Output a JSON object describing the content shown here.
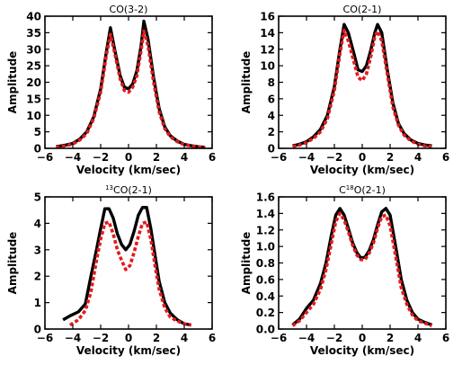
{
  "chart_data": [
    {
      "type": "line",
      "title": "CO(3-2)",
      "xlabel": "Velocity (km/sec)",
      "ylabel": "Amplitude",
      "xlim": [
        -6,
        6
      ],
      "ylim": [
        0,
        40
      ],
      "xticks": [
        "−6",
        "−4",
        "−2",
        "0",
        "2",
        "4",
        "6"
      ],
      "yticks": [
        "0",
        "5",
        "10",
        "15",
        "20",
        "25",
        "30",
        "35",
        "40"
      ],
      "series": [
        {
          "color": "#000000",
          "style": "solid",
          "x": [
            -5.2,
            -4.5,
            -4.0,
            -3.5,
            -3.0,
            -2.5,
            -2.0,
            -1.6,
            -1.3,
            -1.0,
            -0.6,
            -0.3,
            0.0,
            0.3,
            0.6,
            0.9,
            1.1,
            1.4,
            1.8,
            2.2,
            2.6,
            3.0,
            3.5,
            4.0,
            4.5,
            5.0,
            5.5
          ],
          "y": [
            0.5,
            1.0,
            1.5,
            2.8,
            5.0,
            9.5,
            18.0,
            29.0,
            36.5,
            30.0,
            22.0,
            18.5,
            18.0,
            19.5,
            23.5,
            31.0,
            38.5,
            33.0,
            21.5,
            12.0,
            6.5,
            3.8,
            2.2,
            1.2,
            0.8,
            0.5,
            0.3
          ]
        },
        {
          "color": "#e31a1c",
          "style": "dotted",
          "x": [
            -5.2,
            -4.5,
            -4.0,
            -3.5,
            -3.0,
            -2.5,
            -2.0,
            -1.6,
            -1.3,
            -1.0,
            -0.6,
            -0.3,
            0.0,
            0.3,
            0.6,
            0.9,
            1.1,
            1.4,
            1.8,
            2.2,
            2.6,
            3.0,
            3.5,
            4.0,
            4.5,
            5.0,
            5.5
          ],
          "y": [
            0.3,
            0.8,
            1.3,
            2.5,
            4.5,
            9.0,
            17.0,
            28.0,
            34.5,
            29.0,
            21.0,
            17.5,
            17.0,
            18.5,
            22.0,
            29.5,
            35.5,
            31.0,
            20.0,
            11.0,
            6.0,
            3.5,
            2.0,
            1.1,
            0.7,
            0.4,
            0.2
          ]
        }
      ]
    },
    {
      "type": "line",
      "title": "CO(2-1)",
      "xlabel": "Velocity (km/sec)",
      "ylabel": "Amplitude",
      "xlim": [
        -6,
        6
      ],
      "ylim": [
        0,
        16
      ],
      "xticks": [
        "−6",
        "−4",
        "−2",
        "0",
        "2",
        "4",
        "6"
      ],
      "yticks": [
        "0",
        "2",
        "4",
        "6",
        "8",
        "10",
        "12",
        "14",
        "16"
      ],
      "series": [
        {
          "color": "#000000",
          "style": "solid",
          "x": [
            -5.0,
            -4.5,
            -4.0,
            -3.5,
            -3.0,
            -2.5,
            -2.0,
            -1.6,
            -1.3,
            -1.0,
            -0.6,
            -0.3,
            0.0,
            0.3,
            0.6,
            0.9,
            1.1,
            1.4,
            1.8,
            2.2,
            2.6,
            3.0,
            3.5,
            4.0,
            4.5,
            5.0
          ],
          "y": [
            0.3,
            0.5,
            0.8,
            1.4,
            2.3,
            4.0,
            7.5,
            12.0,
            15.0,
            14.0,
            11.5,
            9.5,
            9.3,
            10.0,
            11.8,
            14.0,
            15.0,
            14.0,
            9.5,
            5.5,
            3.0,
            1.8,
            1.0,
            0.6,
            0.4,
            0.3
          ]
        },
        {
          "color": "#e31a1c",
          "style": "dotted",
          "x": [
            -5.0,
            -4.5,
            -4.0,
            -3.5,
            -3.0,
            -2.5,
            -2.0,
            -1.6,
            -1.3,
            -1.0,
            -0.6,
            -0.3,
            0.0,
            0.3,
            0.6,
            0.9,
            1.1,
            1.4,
            1.8,
            2.2,
            2.6,
            3.0,
            3.5,
            4.0,
            4.5,
            5.0
          ],
          "y": [
            0.2,
            0.4,
            0.7,
            1.2,
            2.0,
            3.6,
            7.0,
            11.5,
            14.3,
            13.0,
            10.5,
            8.6,
            8.2,
            9.0,
            11.0,
            13.5,
            14.2,
            13.0,
            9.0,
            5.0,
            2.8,
            1.6,
            0.9,
            0.5,
            0.3,
            0.2
          ]
        }
      ]
    },
    {
      "type": "line",
      "title": "CO(2-1)",
      "title_sup": "13",
      "xlabel": "Velocity (km/sec)",
      "ylabel": "Amplitude",
      "xlim": [
        -6,
        6
      ],
      "ylim": [
        0,
        5
      ],
      "xticks": [
        "−6",
        "−4",
        "−2",
        "0",
        "2",
        "4",
        "6"
      ],
      "yticks": [
        "0",
        "1",
        "2",
        "3",
        "4",
        "5"
      ],
      "series": [
        {
          "color": "#000000",
          "style": "solid",
          "x": [
            -4.7,
            -4.2,
            -3.6,
            -3.1,
            -2.7,
            -2.3,
            -2.0,
            -1.7,
            -1.4,
            -1.1,
            -0.8,
            -0.5,
            -0.2,
            0.1,
            0.4,
            0.7,
            1.0,
            1.3,
            1.6,
            1.9,
            2.2,
            2.6,
            3.0,
            3.5,
            4.0,
            4.5
          ],
          "y": [
            0.35,
            0.5,
            0.65,
            0.95,
            2.0,
            3.0,
            3.8,
            4.55,
            4.55,
            4.2,
            3.6,
            3.2,
            3.0,
            3.2,
            3.7,
            4.3,
            4.6,
            4.6,
            3.8,
            2.8,
            1.8,
            1.0,
            0.6,
            0.35,
            0.2,
            0.15
          ]
        },
        {
          "color": "#e31a1c",
          "style": "dotted",
          "x": [
            -4.2,
            -3.6,
            -3.1,
            -2.7,
            -2.3,
            -2.0,
            -1.7,
            -1.4,
            -1.1,
            -0.8,
            -0.5,
            -0.2,
            0.1,
            0.4,
            0.7,
            1.0,
            1.3,
            1.6,
            1.9,
            2.2,
            2.6,
            3.0,
            3.5,
            4.0,
            4.5
          ],
          "y": [
            0.15,
            0.35,
            0.7,
            1.4,
            2.6,
            3.4,
            4.0,
            4.05,
            3.6,
            3.0,
            2.6,
            2.25,
            2.4,
            2.9,
            3.5,
            4.0,
            4.05,
            3.4,
            2.4,
            1.5,
            0.8,
            0.45,
            0.3,
            0.2,
            0.15
          ]
        }
      ]
    },
    {
      "type": "line",
      "title": "O(2-1)",
      "title_prefix": "C",
      "title_sup": "18",
      "xlabel": "Velocity (km/sec)",
      "ylabel": "Amplitude",
      "xlim": [
        -6,
        6
      ],
      "ylim": [
        0,
        1.6
      ],
      "xticks": [
        "−6",
        "−4",
        "−2",
        "0",
        "2",
        "4",
        "6"
      ],
      "yticks": [
        "0.0",
        "0.2",
        "0.4",
        "0.6",
        "0.8",
        "1.0",
        "1.2",
        "1.4",
        "1.6"
      ],
      "series": [
        {
          "color": "#000000",
          "style": "solid",
          "x": [
            -5.0,
            -4.5,
            -4.0,
            -3.5,
            -3.0,
            -2.6,
            -2.2,
            -1.9,
            -1.6,
            -1.3,
            -1.0,
            -0.7,
            -0.4,
            -0.1,
            0.2,
            0.5,
            0.8,
            1.1,
            1.4,
            1.7,
            2.0,
            2.4,
            2.8,
            3.2,
            3.6,
            4.0,
            4.5,
            5.0
          ],
          "y": [
            0.05,
            0.12,
            0.25,
            0.35,
            0.55,
            0.8,
            1.15,
            1.38,
            1.46,
            1.38,
            1.22,
            1.05,
            0.93,
            0.86,
            0.87,
            0.95,
            1.08,
            1.26,
            1.42,
            1.46,
            1.38,
            1.0,
            0.6,
            0.35,
            0.2,
            0.12,
            0.08,
            0.05
          ]
        },
        {
          "color": "#e31a1c",
          "style": "dotted",
          "x": [
            -5.0,
            -4.5,
            -4.0,
            -3.5,
            -3.0,
            -2.6,
            -2.2,
            -1.9,
            -1.6,
            -1.3,
            -1.0,
            -0.7,
            -0.4,
            -0.1,
            0.2,
            0.5,
            0.8,
            1.1,
            1.4,
            1.7,
            2.0,
            2.4,
            2.8,
            3.2,
            3.6,
            4.0,
            4.5,
            5.0
          ],
          "y": [
            0.04,
            0.1,
            0.2,
            0.3,
            0.48,
            0.72,
            1.05,
            1.3,
            1.4,
            1.32,
            1.18,
            1.02,
            0.9,
            0.84,
            0.84,
            0.92,
            1.04,
            1.22,
            1.36,
            1.38,
            1.25,
            0.88,
            0.5,
            0.3,
            0.17,
            0.1,
            0.07,
            0.04
          ]
        }
      ]
    }
  ]
}
